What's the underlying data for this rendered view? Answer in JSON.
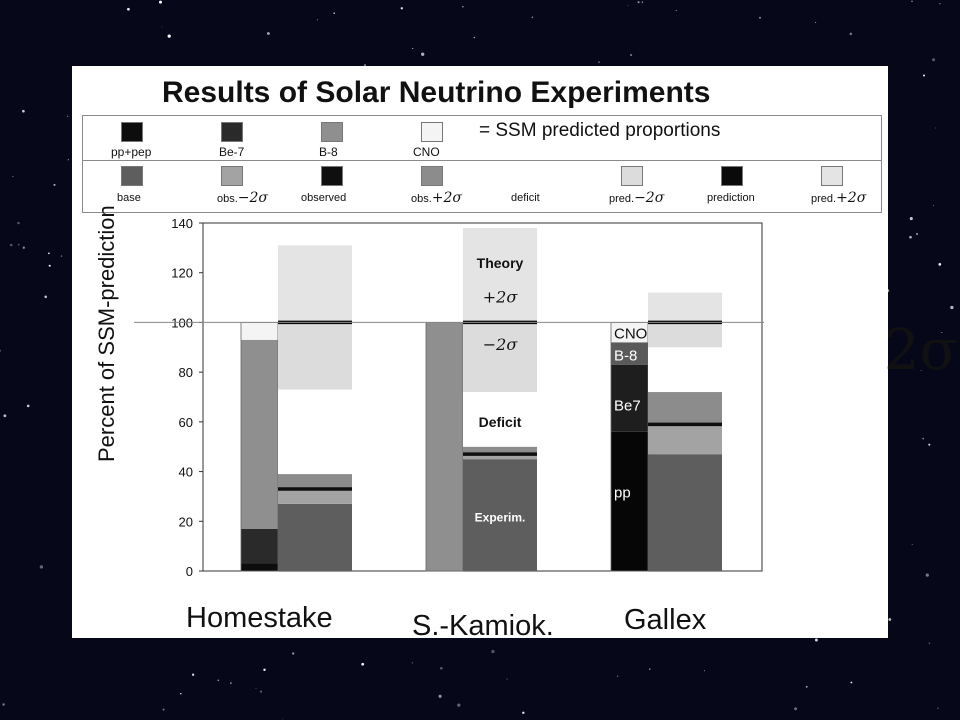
{
  "slide": {
    "title": "Results of Solar Neutrino Experiments",
    "big_sigma_label": "2σ",
    "ylabel": "Percent of SSM-prediction"
  },
  "legend": {
    "proportions_note": "= SSM predicted proportions",
    "row1": [
      {
        "label": "pp+pep",
        "color": "#0d0d0d"
      },
      {
        "label": "Be-7",
        "color": "#2a2a2a"
      },
      {
        "label": "B-8",
        "color": "#8f8f8f"
      },
      {
        "label": "CNO",
        "color": "#f4f4f4"
      }
    ],
    "row2": [
      {
        "label": "base",
        "sigma": "",
        "color": "#5e5e5e"
      },
      {
        "label": "obs.",
        "sigma": "−2σ",
        "color": "#a3a3a3"
      },
      {
        "label": "observed",
        "sigma": "",
        "color": "#0f0f0f"
      },
      {
        "label": "obs.",
        "sigma": "+2σ",
        "color": "#8c8c8c"
      },
      {
        "label": "deficit",
        "sigma": "",
        "color": "#ffffff"
      },
      {
        "label": "pred.",
        "sigma": "−2σ",
        "color": "#dcdcdc"
      },
      {
        "label": "prediction",
        "sigma": "",
        "color": "#0a0a0a"
      },
      {
        "label": "pred.",
        "sigma": "+2σ",
        "color": "#e4e4e4"
      }
    ]
  },
  "chart_data": {
    "type": "bar",
    "categories": [
      "Homestake",
      "S.-Kamiok.",
      "Gallex"
    ],
    "ylabel": "Percent of SSM-prediction",
    "ylim": [
      0,
      140
    ],
    "yticks": [
      0,
      20,
      40,
      60,
      80,
      100,
      120,
      140
    ],
    "reference_line": 100,
    "grid": false,
    "ssm_proportions": [
      {
        "category": "Homestake",
        "segments": [
          {
            "name": "pp+pep",
            "from": 0,
            "to": 3,
            "color": "#0d0d0d"
          },
          {
            "name": "Be-7",
            "from": 3,
            "to": 17,
            "color": "#2a2a2a"
          },
          {
            "name": "B-8",
            "from": 17,
            "to": 93,
            "color": "#8f8f8f"
          },
          {
            "name": "CNO",
            "from": 93,
            "to": 100,
            "color": "#f4f4f4"
          }
        ]
      },
      {
        "category": "S.-Kamiok.",
        "segments": [
          {
            "name": "B-8",
            "from": 0,
            "to": 100,
            "color": "#8f8f8f"
          }
        ]
      },
      {
        "category": "Gallex",
        "segments": [
          {
            "name": "pp",
            "from": 0,
            "to": 56,
            "color": "#060606"
          },
          {
            "name": "Be7",
            "from": 56,
            "to": 83,
            "color": "#1e1e1e"
          },
          {
            "name": "B-8",
            "from": 83,
            "to": 92,
            "color": "#5a5a5a"
          },
          {
            "name": "CNO",
            "from": 92,
            "to": 100,
            "color": "#f4f4f4"
          }
        ]
      }
    ],
    "segment_labels": [
      {
        "category": "Gallex",
        "text": "CNO",
        "value": 96,
        "color": "#111111"
      },
      {
        "category": "Gallex",
        "text": "B-8",
        "value": 87,
        "color": "#ffffff"
      },
      {
        "category": "Gallex",
        "text": "Be7",
        "value": 67,
        "color": "#ffffff"
      },
      {
        "category": "Gallex",
        "text": "pp",
        "value": 32,
        "color": "#ffffff"
      }
    ],
    "experiments": [
      {
        "category": "Homestake",
        "observed": 33,
        "obs_minus_2sigma": 27,
        "obs_plus_2sigma": 39,
        "prediction": 100,
        "pred_minus_2sigma": 73,
        "pred_plus_2sigma": 131
      },
      {
        "category": "S.-Kamiok.",
        "observed": 47,
        "obs_minus_2sigma": 45,
        "obs_plus_2sigma": 50,
        "prediction": 100,
        "pred_minus_2sigma": 72,
        "pred_plus_2sigma": 138
      },
      {
        "category": "Gallex",
        "observed": 59,
        "obs_minus_2sigma": 47,
        "obs_plus_2sigma": 72,
        "prediction": 100,
        "pred_minus_2sigma": 90,
        "pred_plus_2sigma": 112
      }
    ],
    "annotations": [
      {
        "text": "Theory",
        "category": "S.-Kamiok.",
        "value": 124
      },
      {
        "text": "+2σ",
        "category": "S.-Kamiok.",
        "value": 110
      },
      {
        "text": "−2σ",
        "category": "S.-Kamiok.",
        "value": 91
      },
      {
        "text": "Deficit",
        "category": "S.-Kamiok.",
        "value": 60
      },
      {
        "text": "Experim.",
        "category": "S.-Kamiok.",
        "value": 22
      }
    ]
  }
}
